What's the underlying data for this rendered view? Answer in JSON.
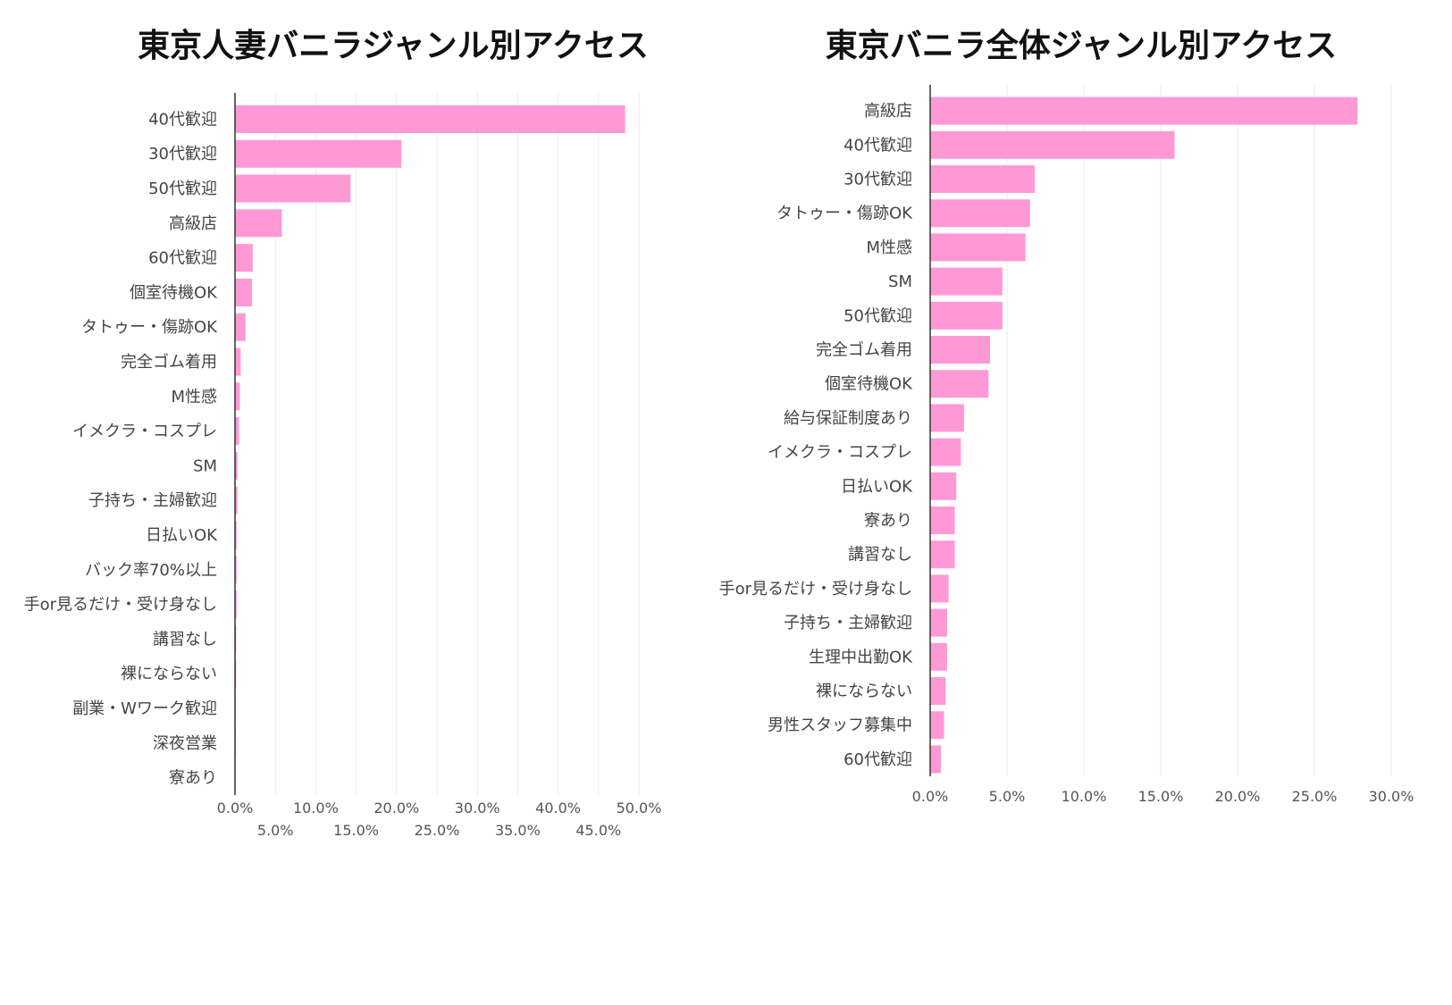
{
  "chart_data": [
    {
      "type": "bar",
      "orientation": "horizontal",
      "title": "東京人妻バニラジャンル別アクセス",
      "categories": [
        "40代歓迎",
        "30代歓迎",
        "50代歓迎",
        "高級店",
        "60代歓迎",
        "個室待機OK",
        "タトゥー・傷跡OK",
        "完全ゴム着用",
        "M性感",
        "イメクラ・コスプレ",
        "SM",
        "子持ち・主婦歓迎",
        "日払いOK",
        "バック率70%以上",
        "手or見るだけ・受け身なし",
        "講習なし",
        "裸にならない",
        "副業・Wワーク歓迎",
        "深夜営業",
        "寮あり"
      ],
      "values": [
        48.3,
        20.6,
        14.3,
        5.8,
        2.2,
        2.1,
        1.3,
        0.7,
        0.6,
        0.5,
        0.3,
        0.3,
        0.2,
        0.2,
        0.2,
        0.15,
        0.15,
        0.1,
        0.1,
        0.05
      ],
      "xlim": [
        0,
        50
      ],
      "ticks": [
        0,
        5,
        10,
        15,
        20,
        25,
        30,
        35,
        40,
        45,
        50
      ],
      "tick_labels": [
        "0.0%",
        "5.0%",
        "10.0%",
        "15.0%",
        "20.0%",
        "25.0%",
        "30.0%",
        "35.0%",
        "40.0%",
        "45.0%",
        "50.0%"
      ],
      "bar_color": "#ff99d6",
      "grid": true
    },
    {
      "type": "bar",
      "orientation": "horizontal",
      "title": "東京バニラ全体ジャンル別アクセス",
      "categories": [
        "高級店",
        "40代歓迎",
        "30代歓迎",
        "タトゥー・傷跡OK",
        "M性感",
        "SM",
        "50代歓迎",
        "完全ゴム着用",
        "個室待機OK",
        "給与保証制度あり",
        "イメクラ・コスプレ",
        "日払いOK",
        "寮あり",
        "講習なし",
        "手or見るだけ・受け身なし",
        "子持ち・主婦歓迎",
        "生理中出勤OK",
        "裸にならない",
        "男性スタッフ募集中",
        "60代歓迎"
      ],
      "values": [
        27.8,
        15.9,
        6.8,
        6.5,
        6.2,
        4.7,
        4.7,
        3.9,
        3.8,
        2.2,
        2.0,
        1.7,
        1.6,
        1.6,
        1.2,
        1.1,
        1.1,
        1.0,
        0.9,
        0.7
      ],
      "xlim": [
        0,
        30
      ],
      "ticks": [
        0,
        5,
        10,
        15,
        20,
        25,
        30
      ],
      "tick_labels": [
        "0.0%",
        "5.0%",
        "10.0%",
        "15.0%",
        "20.0%",
        "25.0%",
        "30.0%"
      ],
      "bar_color": "#ff99d6",
      "grid": true
    }
  ]
}
